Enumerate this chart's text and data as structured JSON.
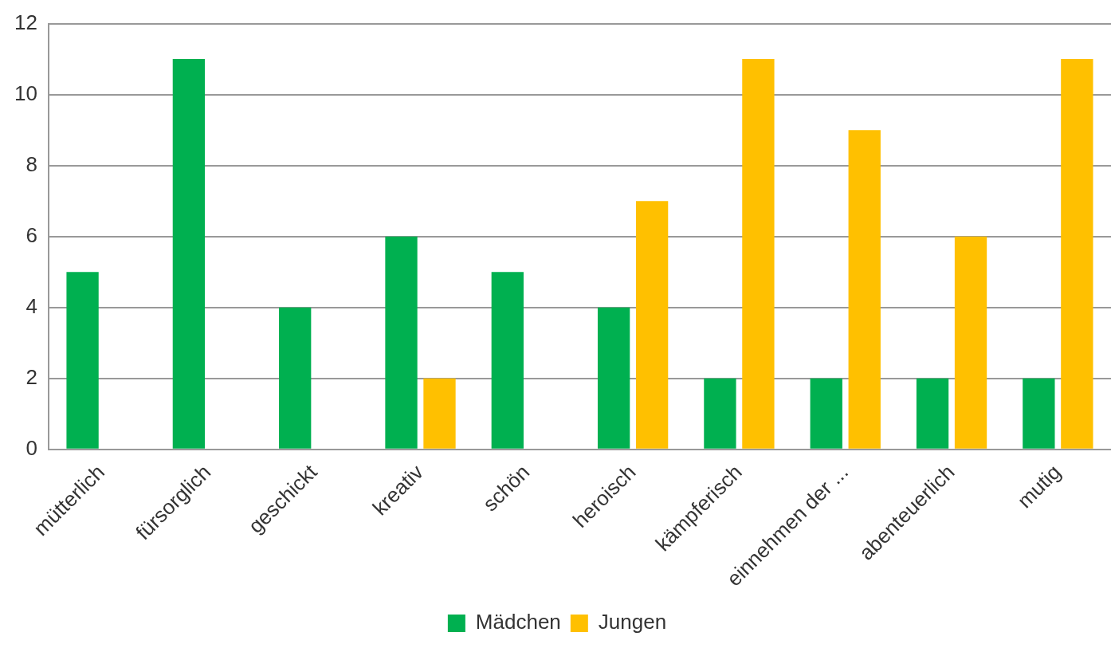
{
  "chart_data": {
    "type": "bar",
    "categories": [
      "mütterlich",
      "fürsorglich",
      "geschickt",
      "kreativ",
      "schön",
      "heroisch",
      "kämpferisch",
      "einnehmen der ...",
      "abenteuerlich",
      "mutig"
    ],
    "series": [
      {
        "name": "Mädchen",
        "color": "#00b050",
        "values": [
          5,
          11,
          4,
          6,
          5,
          4,
          2,
          2,
          2,
          2
        ]
      },
      {
        "name": "Jungen",
        "color": "#ffc000",
        "values": [
          0,
          0,
          0,
          2,
          0,
          7,
          11,
          9,
          6,
          11
        ]
      }
    ],
    "ylim": [
      0,
      12
    ],
    "yticks": [
      0,
      2,
      4,
      6,
      8,
      10,
      12
    ],
    "grid": "y",
    "legend": "bottom"
  }
}
